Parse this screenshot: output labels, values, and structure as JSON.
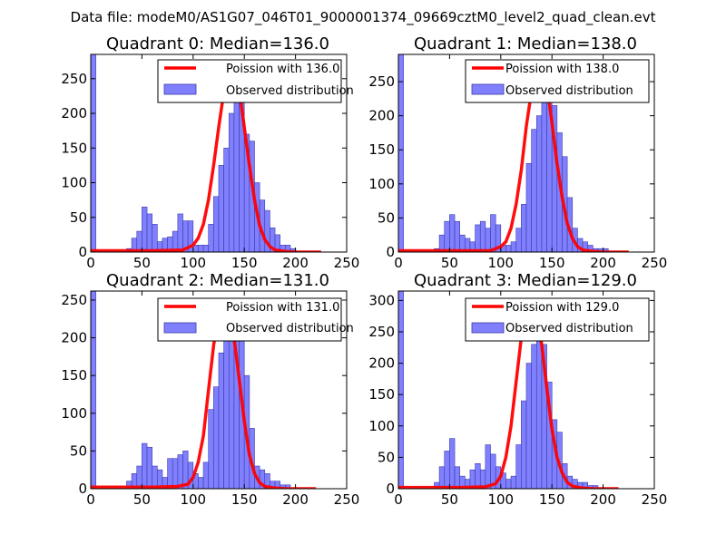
{
  "suptitle": "Data file: modeM0/AS1G07_046T01_9000001374_09669cztM0_level2_quad_clean.evt",
  "colors": {
    "hist_fill": "#8080ff",
    "hist_edge": "#3a3aa8",
    "poisson": "#ff0000"
  },
  "chart_data": [
    {
      "type": "bar",
      "title": "Quadrant 0: Median=136.0",
      "xlim": [
        0,
        250
      ],
      "ylim": [
        0,
        285
      ],
      "xticks": [
        0,
        50,
        100,
        150,
        200,
        250
      ],
      "yticks": [
        0,
        50,
        100,
        150,
        200,
        250
      ],
      "bin_width": 5,
      "legend": {
        "placement": "top-right",
        "entries": [
          "Poission with 136.0",
          "Observed distribution"
        ]
      },
      "hist": [
        [
          0,
          285
        ],
        [
          35,
          5
        ],
        [
          40,
          20
        ],
        [
          45,
          30
        ],
        [
          50,
          65
        ],
        [
          55,
          55
        ],
        [
          60,
          40
        ],
        [
          65,
          15
        ],
        [
          70,
          20
        ],
        [
          75,
          22
        ],
        [
          80,
          30
        ],
        [
          85,
          55
        ],
        [
          90,
          45
        ],
        [
          95,
          45
        ],
        [
          100,
          10
        ],
        [
          105,
          10
        ],
        [
          110,
          10
        ],
        [
          115,
          40
        ],
        [
          120,
          80
        ],
        [
          125,
          125
        ],
        [
          130,
          150
        ],
        [
          135,
          200
        ],
        [
          140,
          265
        ],
        [
          145,
          225
        ],
        [
          150,
          170
        ],
        [
          155,
          160
        ],
        [
          160,
          100
        ],
        [
          165,
          75
        ],
        [
          170,
          60
        ],
        [
          175,
          35
        ],
        [
          180,
          25
        ],
        [
          185,
          10
        ],
        [
          190,
          10
        ],
        [
          195,
          5
        ]
      ],
      "poisson": {
        "x": [
          0,
          60,
          90,
          100,
          105,
          110,
          115,
          120,
          125,
          130,
          135,
          140,
          145,
          150,
          155,
          160,
          165,
          170,
          175,
          180,
          190,
          200,
          225
        ],
        "y": [
          2,
          2,
          3,
          10,
          20,
          40,
          75,
          125,
          180,
          230,
          265,
          270,
          235,
          180,
          125,
          75,
          38,
          18,
          8,
          3,
          1,
          0,
          0
        ]
      }
    },
    {
      "type": "bar",
      "title": "Quadrant 1: Median=138.0",
      "xlim": [
        0,
        250
      ],
      "ylim": [
        0,
        290
      ],
      "xticks": [
        0,
        50,
        100,
        150,
        200,
        250
      ],
      "yticks": [
        0,
        50,
        100,
        150,
        200,
        250
      ],
      "bin_width": 5,
      "legend": {
        "placement": "top-right",
        "entries": [
          "Poission with 138.0",
          "Observed distribution"
        ]
      },
      "hist": [
        [
          0,
          290
        ],
        [
          35,
          5
        ],
        [
          40,
          25
        ],
        [
          45,
          45
        ],
        [
          50,
          55
        ],
        [
          55,
          45
        ],
        [
          60,
          25
        ],
        [
          65,
          20
        ],
        [
          70,
          15
        ],
        [
          75,
          40
        ],
        [
          80,
          45
        ],
        [
          85,
          35
        ],
        [
          90,
          55
        ],
        [
          95,
          40
        ],
        [
          100,
          10
        ],
        [
          105,
          10
        ],
        [
          110,
          15
        ],
        [
          115,
          35
        ],
        [
          120,
          70
        ],
        [
          125,
          130
        ],
        [
          130,
          180
        ],
        [
          135,
          200
        ],
        [
          140,
          240
        ],
        [
          145,
          250
        ],
        [
          150,
          215
        ],
        [
          155,
          175
        ],
        [
          160,
          140
        ],
        [
          165,
          80
        ],
        [
          170,
          35
        ],
        [
          175,
          20
        ],
        [
          180,
          15
        ],
        [
          185,
          10
        ],
        [
          190,
          5
        ],
        [
          195,
          5
        ],
        [
          200,
          5
        ]
      ],
      "poisson": {
        "x": [
          0,
          60,
          90,
          100,
          105,
          110,
          115,
          120,
          125,
          130,
          135,
          140,
          145,
          150,
          155,
          160,
          165,
          170,
          175,
          180,
          190,
          200,
          225
        ],
        "y": [
          2,
          2,
          2,
          8,
          15,
          35,
          70,
          120,
          185,
          235,
          270,
          275,
          245,
          190,
          130,
          80,
          42,
          20,
          8,
          3,
          1,
          0,
          0
        ]
      }
    },
    {
      "type": "bar",
      "title": "Quadrant 2: Median=131.0",
      "xlim": [
        0,
        250
      ],
      "ylim": [
        0,
        262
      ],
      "xticks": [
        0,
        50,
        100,
        150,
        200,
        250
      ],
      "yticks": [
        0,
        50,
        100,
        150,
        200,
        250
      ],
      "bin_width": 5,
      "legend": {
        "placement": "top-right",
        "entries": [
          "Poission with 131.0",
          "Observed distribution"
        ]
      },
      "hist": [
        [
          0,
          262
        ],
        [
          35,
          10
        ],
        [
          40,
          20
        ],
        [
          45,
          30
        ],
        [
          50,
          60
        ],
        [
          55,
          55
        ],
        [
          60,
          30
        ],
        [
          65,
          25
        ],
        [
          70,
          15
        ],
        [
          75,
          40
        ],
        [
          80,
          40
        ],
        [
          85,
          45
        ],
        [
          90,
          50
        ],
        [
          95,
          35
        ],
        [
          100,
          20
        ],
        [
          105,
          15
        ],
        [
          110,
          35
        ],
        [
          115,
          105
        ],
        [
          120,
          135
        ],
        [
          125,
          180
        ],
        [
          130,
          220
        ],
        [
          135,
          230
        ],
        [
          140,
          245
        ],
        [
          145,
          240
        ],
        [
          150,
          150
        ],
        [
          155,
          80
        ],
        [
          160,
          30
        ],
        [
          165,
          25
        ],
        [
          170,
          20
        ],
        [
          175,
          10
        ],
        [
          180,
          10
        ],
        [
          185,
          5
        ],
        [
          190,
          5
        ]
      ],
      "poisson": {
        "x": [
          0,
          60,
          85,
          95,
          100,
          105,
          110,
          115,
          120,
          125,
          130,
          135,
          140,
          145,
          150,
          155,
          160,
          165,
          170,
          180,
          190,
          200,
          220
        ],
        "y": [
          2,
          2,
          3,
          6,
          15,
          35,
          70,
          130,
          190,
          235,
          250,
          240,
          200,
          145,
          90,
          45,
          20,
          8,
          3,
          1,
          0,
          0,
          0
        ]
      }
    },
    {
      "type": "bar",
      "title": "Quadrant 3: Median=129.0",
      "xlim": [
        0,
        250
      ],
      "ylim": [
        0,
        315
      ],
      "xticks": [
        0,
        50,
        100,
        150,
        200,
        250
      ],
      "yticks": [
        0,
        50,
        100,
        150,
        200,
        250,
        300
      ],
      "bin_width": 5,
      "legend": {
        "placement": "top-right",
        "entries": [
          "Poission with 129.0",
          "Observed distribution"
        ]
      },
      "hist": [
        [
          0,
          315
        ],
        [
          35,
          10
        ],
        [
          40,
          35
        ],
        [
          45,
          60
        ],
        [
          50,
          80
        ],
        [
          55,
          35
        ],
        [
          60,
          20
        ],
        [
          65,
          15
        ],
        [
          70,
          30
        ],
        [
          75,
          40
        ],
        [
          80,
          30
        ],
        [
          85,
          70
        ],
        [
          90,
          55
        ],
        [
          95,
          35
        ],
        [
          100,
          25
        ],
        [
          105,
          15
        ],
        [
          110,
          20
        ],
        [
          115,
          70
        ],
        [
          120,
          140
        ],
        [
          125,
          200
        ],
        [
          130,
          230
        ],
        [
          135,
          240
        ],
        [
          140,
          230
        ],
        [
          145,
          170
        ],
        [
          150,
          110
        ],
        [
          155,
          90
        ],
        [
          160,
          40
        ],
        [
          165,
          20
        ],
        [
          170,
          15
        ],
        [
          175,
          10
        ],
        [
          180,
          10
        ],
        [
          185,
          5
        ],
        [
          190,
          5
        ]
      ],
      "poisson": {
        "x": [
          0,
          60,
          85,
          95,
          100,
          105,
          110,
          115,
          120,
          125,
          130,
          135,
          140,
          145,
          150,
          155,
          160,
          165,
          170,
          180,
          190,
          200,
          215
        ],
        "y": [
          2,
          2,
          3,
          8,
          20,
          50,
          100,
          170,
          240,
          285,
          300,
          280,
          230,
          160,
          95,
          50,
          25,
          10,
          4,
          1,
          0,
          0,
          0
        ]
      }
    }
  ]
}
